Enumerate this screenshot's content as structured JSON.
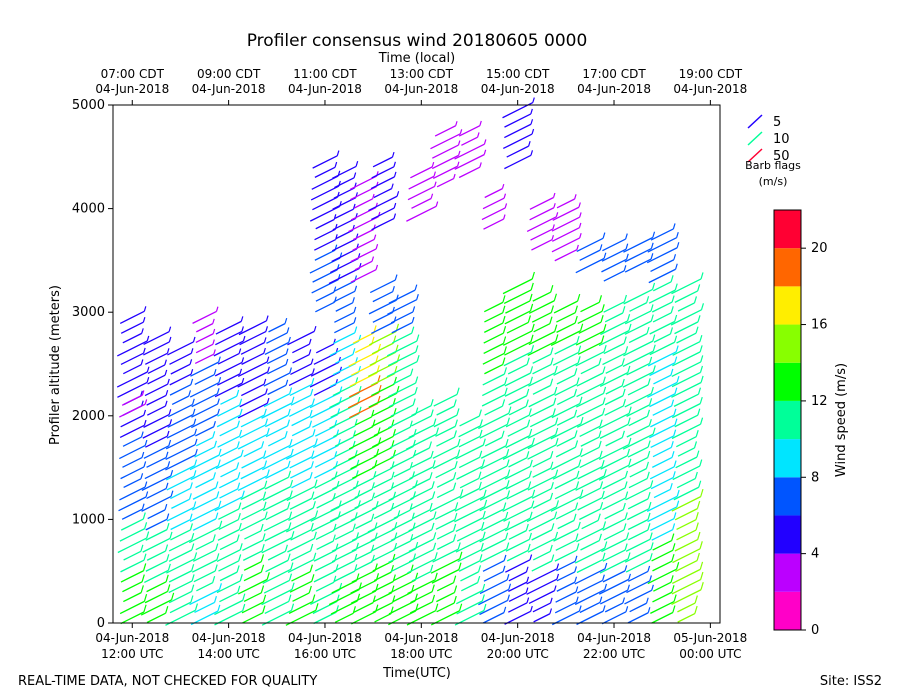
{
  "chart_data": {
    "type": "wind-barb profile",
    "title": "Profiler consensus wind 20180605 0000",
    "top_axis_title": "Time (local)",
    "xlabel": "Time(UTC)",
    "ylabel": "Profiler altitude (meters)",
    "ylim": [
      0,
      5000
    ],
    "xlim_hours": [
      11.6,
      24.2
    ],
    "y_ticks": [
      0,
      1000,
      2000,
      3000,
      4000,
      5000
    ],
    "x_ticks": [
      {
        "hour": 12,
        "line1": "04-Jun-2018",
        "line2": "12:00 UTC",
        "top1": "07:00 CDT",
        "top2": "04-Jun-2018"
      },
      {
        "hour": 14,
        "line1": "04-Jun-2018",
        "line2": "14:00 UTC",
        "top1": "09:00 CDT",
        "top2": "04-Jun-2018"
      },
      {
        "hour": 16,
        "line1": "04-Jun-2018",
        "line2": "16:00 UTC",
        "top1": "11:00 CDT",
        "top2": "04-Jun-2018"
      },
      {
        "hour": 18,
        "line1": "04-Jun-2018",
        "line2": "18:00 UTC",
        "top1": "13:00 CDT",
        "top2": "04-Jun-2018"
      },
      {
        "hour": 20,
        "line1": "04-Jun-2018",
        "line2": "20:00 UTC",
        "top1": "15:00 CDT",
        "top2": "04-Jun-2018"
      },
      {
        "hour": 22,
        "line1": "04-Jun-2018",
        "line2": "22:00 UTC",
        "top1": "17:00 CDT",
        "top2": "04-Jun-2018"
      },
      {
        "hour": 24,
        "line1": "05-Jun-2018",
        "line2": "00:00 UTC",
        "top1": "19:00 CDT",
        "top2": "04-Jun-2018"
      }
    ],
    "legend": {
      "entries": [
        {
          "label": "5",
          "color": "#2200ff"
        },
        {
          "label": "10",
          "color": "#00ff99"
        },
        {
          "label": "50",
          "color": "#ff0033"
        }
      ],
      "title_line1": "Barb flags",
      "title_line2": "(m/s)"
    },
    "colorbar": {
      "label": "Wind speed (m/s)",
      "min": 0,
      "max": 22,
      "ticks": [
        0,
        4,
        8,
        12,
        16,
        20
      ],
      "bands": [
        {
          "from": 0,
          "to": 2,
          "color": "#ff00c8"
        },
        {
          "from": 2,
          "to": 4,
          "color": "#bb00ff"
        },
        {
          "from": 4,
          "to": 6,
          "color": "#2200ff"
        },
        {
          "from": 6,
          "to": 8,
          "color": "#0055ff"
        },
        {
          "from": 8,
          "to": 10,
          "color": "#00e5ff"
        },
        {
          "from": 10,
          "to": 12,
          "color": "#00ff99"
        },
        {
          "from": 12,
          "to": 14,
          "color": "#00ff00"
        },
        {
          "from": 14,
          "to": 16,
          "color": "#88ff00"
        },
        {
          "from": 16,
          "to": 18,
          "color": "#ffee00"
        },
        {
          "from": 18,
          "to": 20,
          "color": "#ff6600"
        },
        {
          "from": 20,
          "to": 22,
          "color": "#ff0033"
        }
      ]
    },
    "barb_columns": [
      {
        "hour": 12.0,
        "segments": [
          [
            0,
            500,
            13
          ],
          [
            500,
            1000,
            10
          ],
          [
            1000,
            1800,
            6
          ],
          [
            1800,
            2600,
            5
          ],
          [
            2600,
            3000,
            4
          ],
          [
            2000,
            2200,
            3
          ]
        ]
      },
      {
        "hour": 12.5,
        "segments": [
          [
            0,
            400,
            12
          ],
          [
            400,
            900,
            10
          ],
          [
            900,
            1700,
            7
          ],
          [
            1700,
            2500,
            5
          ],
          [
            2500,
            2800,
            4
          ]
        ]
      },
      {
        "hour": 13.0,
        "segments": [
          [
            0,
            300,
            11
          ],
          [
            300,
            900,
            10
          ],
          [
            900,
            1500,
            8
          ],
          [
            1500,
            2300,
            7
          ],
          [
            2300,
            2700,
            4
          ]
        ]
      },
      {
        "hour": 13.5,
        "segments": [
          [
            0,
            300,
            9
          ],
          [
            300,
            900,
            10
          ],
          [
            900,
            1800,
            9
          ],
          [
            1800,
            2500,
            6
          ],
          [
            2500,
            3000,
            3
          ]
        ]
      },
      {
        "hour": 14.0,
        "segments": [
          [
            0,
            500,
            11
          ],
          [
            500,
            1100,
            10
          ],
          [
            1100,
            2200,
            9
          ],
          [
            2200,
            2900,
            4
          ]
        ]
      },
      {
        "hour": 14.5,
        "segments": [
          [
            0,
            600,
            13
          ],
          [
            600,
            1300,
            11
          ],
          [
            1300,
            2000,
            9
          ],
          [
            2000,
            2900,
            5
          ]
        ]
      },
      {
        "hour": 15.0,
        "segments": [
          [
            0,
            600,
            11
          ],
          [
            600,
            1400,
            10
          ],
          [
            1400,
            2200,
            9
          ],
          [
            2200,
            2900,
            6
          ]
        ]
      },
      {
        "hour": 15.5,
        "segments": [
          [
            0,
            500,
            12
          ],
          [
            500,
            1300,
            11
          ],
          [
            1300,
            2300,
            9
          ],
          [
            2300,
            2800,
            5
          ]
        ]
      },
      {
        "hour": 16.0,
        "segments": [
          [
            0,
            300,
            11
          ],
          [
            300,
            1400,
            10
          ],
          [
            1400,
            2200,
            9
          ],
          [
            2200,
            2700,
            5
          ],
          [
            3000,
            3600,
            6
          ],
          [
            3600,
            4500,
            5
          ]
        ]
      },
      {
        "hour": 16.4,
        "segments": [
          [
            0,
            400,
            12
          ],
          [
            400,
            1500,
            11
          ],
          [
            1500,
            2300,
            11
          ],
          [
            2300,
            2800,
            9
          ],
          [
            2800,
            3300,
            6
          ],
          [
            3300,
            4400,
            5
          ]
        ]
      },
      {
        "hour": 16.8,
        "segments": [
          [
            0,
            500,
            12
          ],
          [
            500,
            1400,
            11
          ],
          [
            1400,
            2000,
            12
          ],
          [
            2000,
            2300,
            18
          ],
          [
            2300,
            2800,
            16
          ],
          [
            3300,
            4300,
            3
          ]
        ]
      },
      {
        "hour": 17.2,
        "segments": [
          [
            0,
            600,
            12
          ],
          [
            600,
            1500,
            11
          ],
          [
            1500,
            2300,
            13
          ],
          [
            2300,
            2800,
            14
          ],
          [
            2800,
            3300,
            6
          ],
          [
            3800,
            4500,
            4
          ]
        ]
      },
      {
        "hour": 17.6,
        "segments": [
          [
            0,
            500,
            13
          ],
          [
            500,
            1200,
            11
          ],
          [
            1200,
            2200,
            10
          ],
          [
            2200,
            2800,
            10
          ],
          [
            2800,
            3200,
            6
          ]
        ]
      },
      {
        "hour": 18.0,
        "segments": [
          [
            0,
            400,
            12
          ],
          [
            400,
            1300,
            11
          ],
          [
            1300,
            2100,
            10
          ],
          [
            3900,
            4400,
            3
          ]
        ]
      },
      {
        "hour": 18.5,
        "segments": [
          [
            0,
            600,
            12
          ],
          [
            600,
            1600,
            11
          ],
          [
            1600,
            2200,
            11
          ],
          [
            4200,
            4800,
            2
          ]
        ]
      },
      {
        "hour": 19.0,
        "segments": [
          [
            0,
            600,
            10
          ],
          [
            600,
            1500,
            11
          ],
          [
            1500,
            2000,
            10
          ],
          [
            4300,
            4800,
            3
          ]
        ]
      },
      {
        "hour": 19.5,
        "segments": [
          [
            0,
            600,
            7
          ],
          [
            600,
            1500,
            10
          ],
          [
            1500,
            2400,
            11
          ],
          [
            2400,
            3100,
            12
          ],
          [
            3800,
            4200,
            2
          ]
        ]
      },
      {
        "hour": 20.0,
        "segments": [
          [
            0,
            600,
            5
          ],
          [
            600,
            1600,
            10
          ],
          [
            1600,
            2600,
            11
          ],
          [
            2600,
            3300,
            12
          ],
          [
            4400,
            5000,
            4
          ]
        ]
      },
      {
        "hour": 20.5,
        "segments": [
          [
            0,
            500,
            5
          ],
          [
            500,
            1500,
            10
          ],
          [
            1500,
            2600,
            11
          ],
          [
            2600,
            3200,
            12
          ],
          [
            3600,
            4100,
            2
          ]
        ]
      },
      {
        "hour": 21.0,
        "segments": [
          [
            0,
            600,
            6
          ],
          [
            600,
            1500,
            11
          ],
          [
            1500,
            2700,
            11
          ],
          [
            2700,
            3100,
            12
          ],
          [
            3500,
            4100,
            3
          ]
        ]
      },
      {
        "hour": 21.5,
        "segments": [
          [
            0,
            500,
            7
          ],
          [
            500,
            1400,
            11
          ],
          [
            1400,
            2600,
            10
          ],
          [
            2600,
            3100,
            12
          ],
          [
            3400,
            3700,
            7
          ]
        ]
      },
      {
        "hour": 22.0,
        "segments": [
          [
            0,
            500,
            6
          ],
          [
            500,
            1500,
            10
          ],
          [
            1500,
            2500,
            11
          ],
          [
            2500,
            3100,
            11
          ],
          [
            3300,
            3700,
            6
          ]
        ]
      },
      {
        "hour": 22.5,
        "segments": [
          [
            0,
            500,
            6
          ],
          [
            500,
            1500,
            11
          ],
          [
            1500,
            2400,
            10
          ],
          [
            2400,
            3200,
            10
          ],
          [
            3400,
            3700,
            7
          ]
        ]
      },
      {
        "hour": 23.0,
        "segments": [
          [
            0,
            800,
            12
          ],
          [
            800,
            1600,
            9
          ],
          [
            1600,
            2600,
            9
          ],
          [
            2600,
            3300,
            10
          ],
          [
            3300,
            3800,
            6
          ]
        ]
      },
      {
        "hour": 23.5,
        "segments": [
          [
            0,
            1200,
            14
          ],
          [
            1200,
            2200,
            10
          ],
          [
            2200,
            3300,
            10
          ]
        ]
      }
    ]
  },
  "footer": {
    "left": "REAL-TIME DATA, NOT CHECKED FOR QUALITY",
    "right": "Site: ISS2"
  }
}
